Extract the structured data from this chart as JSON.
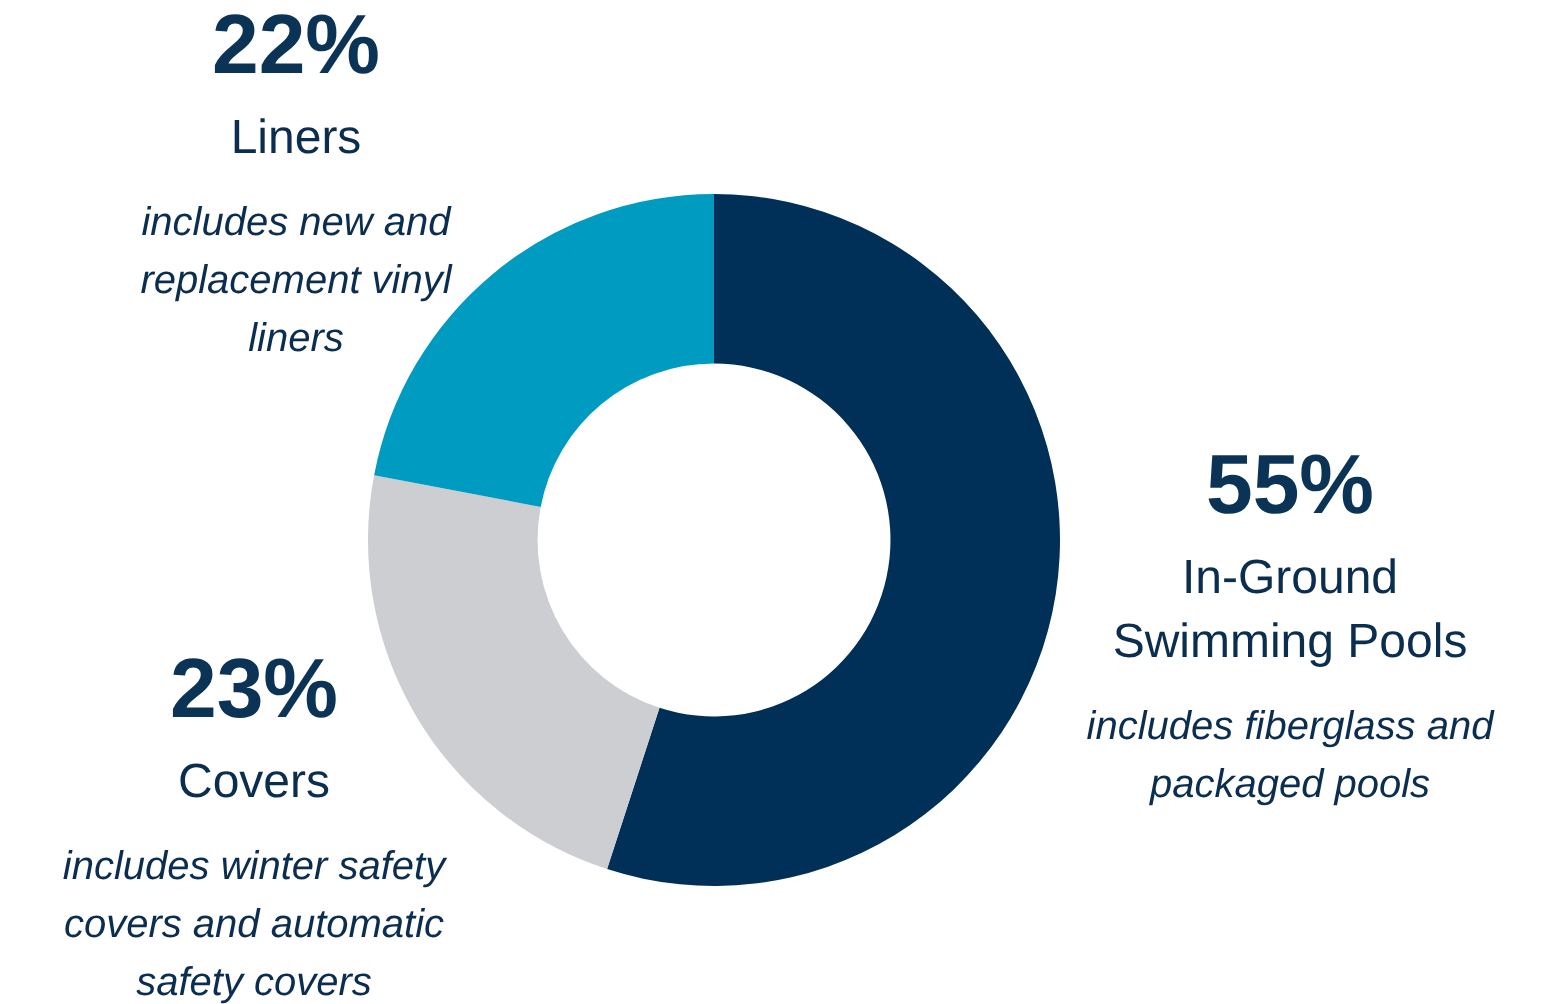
{
  "chart_data": {
    "type": "donut",
    "categories": [
      "In-Ground Swimming Pools",
      "Covers",
      "Liners"
    ],
    "values": [
      55,
      23,
      22
    ],
    "colors": [
      "#003057",
      "#cdced2",
      "#009bc1"
    ],
    "value_labels": [
      "55%",
      "23%",
      "22%"
    ],
    "annotations": [
      "includes fiberglass and packaged pools",
      "includes winter safety covers and automatic safety covers",
      "includes new and replacement vinyl liners"
    ],
    "legend": false
  }
}
